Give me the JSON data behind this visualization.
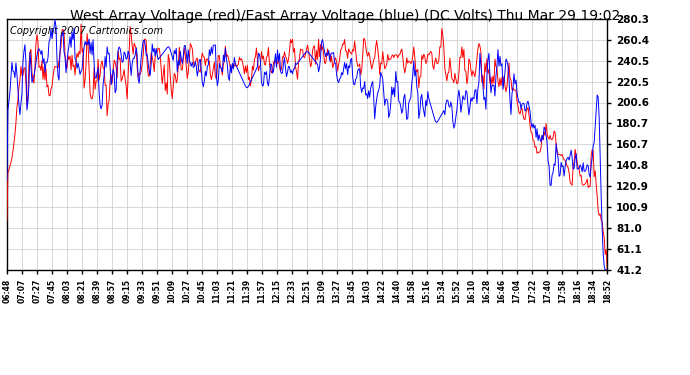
{
  "title": "West Array Voltage (red)/East Array Voltage (blue) (DC Volts) Thu Mar 29 19:02",
  "copyright": "Copyright 2007 Cartronics.com",
  "yticks": [
    280.3,
    260.4,
    240.5,
    220.5,
    200.6,
    180.7,
    160.7,
    140.8,
    120.9,
    100.9,
    81.0,
    61.1,
    41.2
  ],
  "xtick_labels": [
    "06:48",
    "07:07",
    "07:27",
    "07:45",
    "08:03",
    "08:21",
    "08:39",
    "08:57",
    "09:15",
    "09:33",
    "09:51",
    "10:09",
    "10:27",
    "10:45",
    "11:03",
    "11:21",
    "11:39",
    "11:57",
    "12:15",
    "12:33",
    "12:51",
    "13:09",
    "13:27",
    "13:45",
    "14:03",
    "14:22",
    "14:40",
    "14:58",
    "15:16",
    "15:34",
    "15:52",
    "16:10",
    "16:28",
    "16:46",
    "17:04",
    "17:22",
    "17:40",
    "17:58",
    "18:16",
    "18:34",
    "18:52"
  ],
  "ymin": 41.2,
  "ymax": 280.3,
  "background_color": "#ffffff",
  "plot_bg_color": "#ffffff",
  "grid_color": "#c8c8c8",
  "red_color": "#ff0000",
  "blue_color": "#0000ff",
  "title_fontsize": 10,
  "copyright_fontsize": 7,
  "tick_fontsize": 7.5,
  "xtick_fontsize": 5.5
}
